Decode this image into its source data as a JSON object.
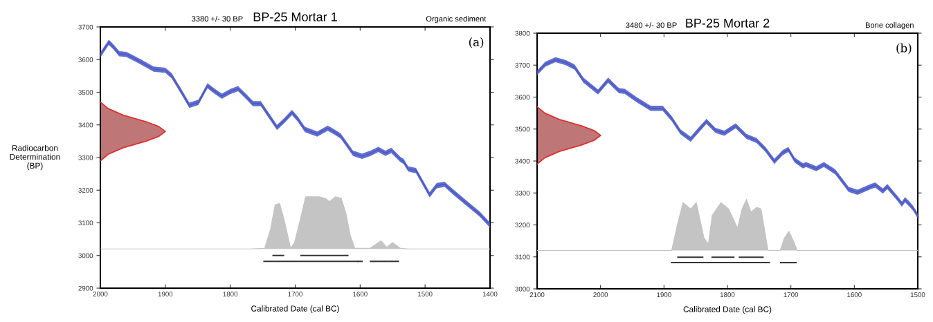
{
  "chart_data": [
    {
      "type": "line",
      "title": "BP-25 Mortar 1",
      "xlabel": "Calibrated Date (cal BC)",
      "ylabel": "Radiocarbon\nDetermination\n(BP)",
      "annotations": [
        "3380 +/- 30 BP",
        "Organic sediment",
        "(a)"
      ],
      "xlim": [
        2000,
        1400
      ],
      "xticks": [
        2000,
        1900,
        1800,
        1700,
        1600,
        1500,
        1400
      ],
      "ylim": [
        2900,
        3700
      ],
      "yticks": [
        2900,
        3000,
        3100,
        3200,
        3300,
        3400,
        3500,
        3600,
        3700
      ],
      "grid": false,
      "legend": false,
      "series": [
        {
          "color": "#4656c8",
          "x": [
            2000,
            1987,
            1980,
            1971,
            1960,
            1950,
            1937,
            1918,
            1900,
            1890,
            1876,
            1863,
            1849,
            1835,
            1826,
            1813,
            1800,
            1788,
            1776,
            1765,
            1753,
            1742,
            1728,
            1716,
            1705,
            1696,
            1685,
            1666,
            1650,
            1641,
            1630,
            1611,
            1597,
            1584,
            1572,
            1561,
            1552,
            1538,
            1533,
            1526,
            1514,
            1493,
            1482,
            1470,
            1457,
            1435,
            1416,
            1400
          ],
          "values": [
            3615,
            3653,
            3639,
            3618,
            3616,
            3606,
            3592,
            3571,
            3567,
            3550,
            3504,
            3460,
            3469,
            3520,
            3506,
            3488,
            3502,
            3511,
            3488,
            3465,
            3465,
            3433,
            3392,
            3415,
            3438,
            3418,
            3386,
            3372,
            3390,
            3380,
            3366,
            3313,
            3304,
            3313,
            3325,
            3313,
            3322,
            3294,
            3288,
            3265,
            3260,
            3186,
            3214,
            3218,
            3195,
            3158,
            3127,
            3093
          ],
          "lower": [
            3607,
            3645,
            3631,
            3610,
            3608,
            3598,
            3584,
            3563,
            3559,
            3542,
            3496,
            3452,
            3461,
            3512,
            3498,
            3480,
            3494,
            3503,
            3480,
            3457,
            3457,
            3425,
            3384,
            3407,
            3430,
            3410,
            3378,
            3364,
            3382,
            3372,
            3358,
            3305,
            3296,
            3305,
            3317,
            3305,
            3314,
            3286,
            3280,
            3257,
            3252,
            3178,
            3206,
            3210,
            3187,
            3150,
            3119,
            3085
          ],
          "upper": [
            3623,
            3661,
            3647,
            3626,
            3624,
            3614,
            3600,
            3579,
            3575,
            3558,
            3512,
            3468,
            3477,
            3528,
            3514,
            3496,
            3510,
            3519,
            3496,
            3473,
            3473,
            3441,
            3400,
            3423,
            3446,
            3426,
            3394,
            3380,
            3398,
            3388,
            3374,
            3321,
            3312,
            3321,
            3333,
            3321,
            3330,
            3302,
            3296,
            3273,
            3268,
            3194,
            3222,
            3226,
            3203,
            3166,
            3135,
            3101
          ]
        },
        {
          "type": "area",
          "color": "#e03030",
          "x": [
            2000,
            1988,
            1965,
            1930,
            1910,
            1900,
            1910,
            1930,
            1965,
            1988,
            2000
          ],
          "values": [
            3470,
            3450,
            3430,
            3410,
            3395,
            3380,
            3365,
            3350,
            3330,
            3310,
            3290
          ]
        },
        {
          "type": "area",
          "color": "#c4c4c4",
          "x": [
            2000,
            1770,
            1747,
            1738,
            1731,
            1724,
            1717,
            1707,
            1701,
            1691,
            1684,
            1663,
            1654,
            1647,
            1638,
            1629,
            1622,
            1615,
            1608,
            1585,
            1568,
            1559,
            1550,
            1538,
            1525,
            1400
          ],
          "values": [
            3020,
            3020,
            3022,
            3080,
            3155,
            3160,
            3110,
            3022,
            3040,
            3120,
            3180,
            3180,
            3175,
            3165,
            3180,
            3175,
            3130,
            3060,
            3022,
            3022,
            3045,
            3025,
            3040,
            3022,
            3020,
            3020
          ]
        },
        {
          "color": "#333333",
          "x": [
            1734,
            1718,
            null,
            1691,
            1619,
            null,
            1748,
            1604,
            null,
            1603,
            1597,
            null,
            1584,
            1557,
            null,
            1555,
            1541
          ],
          "values": [
            3000,
            3000,
            null,
            3000,
            3000,
            null,
            2982,
            2982,
            null,
            2982,
            2982,
            null,
            2982,
            2982,
            null,
            2982,
            2982
          ]
        }
      ]
    },
    {
      "type": "line",
      "title": "BP-25 Mortar 2",
      "xlabel": "Calibrated Date (cal BC)",
      "annotations": [
        "3480 +/- 30 BP",
        "Bone collagen",
        "(b)"
      ],
      "xlim": [
        2100,
        1500
      ],
      "xticks": [
        2100,
        2000,
        1900,
        1800,
        1700,
        1600,
        1500
      ],
      "ylim": [
        3000,
        3800
      ],
      "yticks": [
        3000,
        3100,
        3200,
        3300,
        3400,
        3500,
        3600,
        3700,
        3800
      ],
      "grid": false,
      "legend": false,
      "series": [
        {
          "color": "#4656c8",
          "x": [
            2100,
            2087,
            2071,
            2055,
            2041,
            2027,
            2004,
            1988,
            1971,
            1962,
            1944,
            1921,
            1902,
            1888,
            1874,
            1858,
            1844,
            1833,
            1819,
            1805,
            1787,
            1770,
            1754,
            1740,
            1726,
            1713,
            1704,
            1694,
            1681,
            1676,
            1660,
            1648,
            1630,
            1609,
            1595,
            1574,
            1567,
            1555,
            1548,
            1532,
            1525,
            1520,
            1513,
            1507,
            1500
          ],
          "values": [
            3676,
            3703,
            3717,
            3708,
            3694,
            3653,
            3616,
            3653,
            3620,
            3618,
            3593,
            3565,
            3565,
            3533,
            3491,
            3468,
            3500,
            3524,
            3496,
            3487,
            3510,
            3477,
            3464,
            3436,
            3399,
            3426,
            3436,
            3403,
            3385,
            3389,
            3376,
            3389,
            3366,
            3311,
            3302,
            3320,
            3325,
            3306,
            3320,
            3283,
            3265,
            3279,
            3265,
            3251,
            3228
          ],
          "lower": [
            3668,
            3695,
            3709,
            3700,
            3686,
            3645,
            3608,
            3645,
            3612,
            3610,
            3585,
            3557,
            3557,
            3525,
            3483,
            3460,
            3492,
            3516,
            3488,
            3479,
            3502,
            3469,
            3456,
            3428,
            3391,
            3418,
            3428,
            3395,
            3377,
            3381,
            3368,
            3381,
            3358,
            3303,
            3294,
            3312,
            3317,
            3298,
            3312,
            3275,
            3257,
            3271,
            3257,
            3243,
            3220
          ],
          "upper": [
            3684,
            3711,
            3725,
            3716,
            3702,
            3661,
            3624,
            3661,
            3628,
            3626,
            3601,
            3573,
            3573,
            3541,
            3499,
            3476,
            3508,
            3532,
            3504,
            3495,
            3518,
            3485,
            3472,
            3444,
            3407,
            3434,
            3444,
            3411,
            3393,
            3397,
            3384,
            3397,
            3374,
            3319,
            3310,
            3328,
            3333,
            3314,
            3328,
            3291,
            3273,
            3287,
            3273,
            3259,
            3236
          ]
        },
        {
          "type": "area",
          "color": "#e03030",
          "x": [
            2100,
            2088,
            2065,
            2030,
            2010,
            2000,
            2010,
            2030,
            2065,
            2088,
            2100
          ],
          "values": [
            3570,
            3550,
            3530,
            3510,
            3495,
            3480,
            3465,
            3450,
            3430,
            3410,
            3390
          ]
        },
        {
          "type": "area",
          "color": "#c4c4c4",
          "x": [
            2100,
            1888,
            1879,
            1870,
            1858,
            1849,
            1837,
            1830,
            1824,
            1810,
            1798,
            1784,
            1777,
            1770,
            1763,
            1754,
            1747,
            1736,
            1717,
            1710,
            1703,
            1696,
            1690,
            1500
          ],
          "values": [
            3120,
            3120,
            3200,
            3270,
            3250,
            3270,
            3160,
            3140,
            3230,
            3270,
            3250,
            3190,
            3250,
            3280,
            3240,
            3255,
            3250,
            3120,
            3120,
            3160,
            3180,
            3150,
            3120,
            3120
          ]
        },
        {
          "color": "#333333",
          "x": [
            1878,
            1839,
            null,
            1824,
            1790,
            null,
            1781,
            1744,
            null,
            1888,
            1734,
            null,
            1716,
            1692
          ],
          "values": [
            3099,
            3099,
            null,
            3099,
            3099,
            null,
            3099,
            3099,
            null,
            3082,
            3082,
            null,
            3082,
            3082
          ]
        }
      ]
    }
  ]
}
